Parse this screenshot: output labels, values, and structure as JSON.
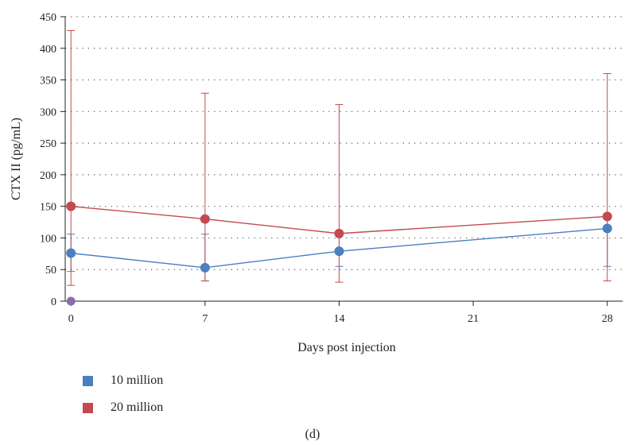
{
  "chart_data": {
    "type": "line",
    "title": "",
    "xlabel": "Days post injection",
    "ylabel": "CTX II (pg/mL)",
    "x": [
      0,
      7,
      14,
      21,
      28
    ],
    "xlim": [
      -0.3,
      28.8
    ],
    "ylim": [
      0,
      450
    ],
    "y_ticks": [
      0,
      50,
      100,
      150,
      200,
      250,
      300,
      350,
      400,
      450
    ],
    "x_ticks": [
      0,
      7,
      14,
      21,
      28
    ],
    "grid": "horizontal-dotted",
    "legend_position": "bottom-left",
    "series": [
      {
        "name": "10 million",
        "color": "#4a7fc1",
        "points": [
          {
            "x": 0,
            "y": 76,
            "err_low": 47,
            "err_high": 106
          },
          {
            "x": 7,
            "y": 53,
            "err_low": 32,
            "err_high": 106
          },
          {
            "x": 14,
            "y": 79,
            "err_low": 55,
            "err_high": 106
          },
          {
            "x": 28,
            "y": 115,
            "err_low": 55,
            "err_high": 130
          }
        ]
      },
      {
        "name": "20 million",
        "color": "#c34a4e",
        "points": [
          {
            "x": 0,
            "y": 150,
            "err_low": 25,
            "err_high": 428
          },
          {
            "x": 7,
            "y": 130,
            "err_low": 32,
            "err_high": 329
          },
          {
            "x": 14,
            "y": 107,
            "err_low": 30,
            "err_high": 311
          },
          {
            "x": 28,
            "y": 134,
            "err_low": 32,
            "err_high": 360
          }
        ]
      }
    ],
    "extra_points": [
      {
        "x": 0,
        "y": 0,
        "color": "#8e6aae"
      }
    ]
  },
  "caption": "(d)"
}
